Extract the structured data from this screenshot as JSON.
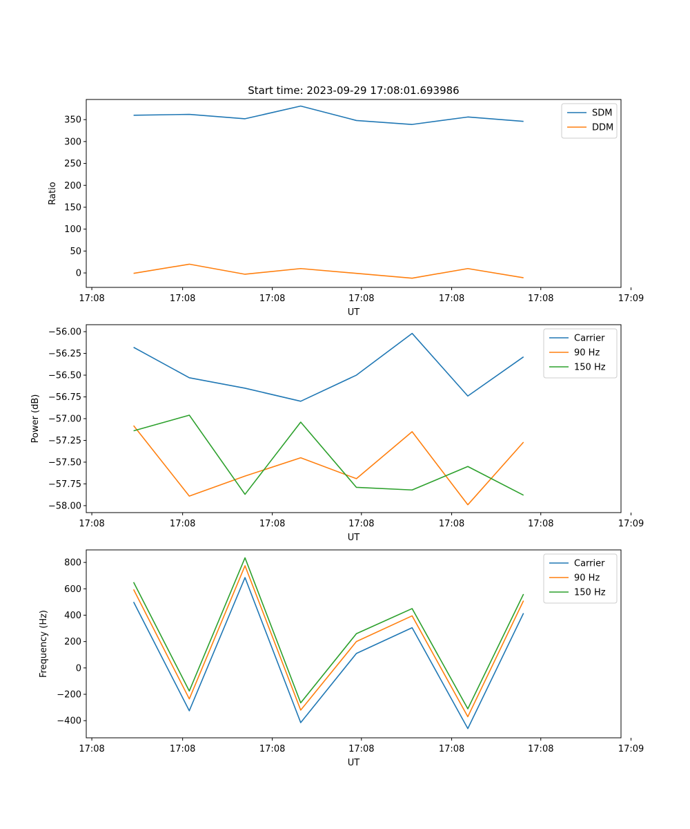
{
  "chart_data": [
    {
      "type": "line",
      "title": "Start time: 2023-09-29 17:08:01.693986",
      "xlabel": "UT",
      "ylabel": "Ratio",
      "ylim": [
        -33,
        396
      ],
      "yticks": [
        0,
        50,
        100,
        150,
        200,
        250,
        300,
        350
      ],
      "ytick_labels": [
        "0",
        "50",
        "100",
        "150",
        "200",
        "250",
        "300",
        "350"
      ],
      "xlim": [
        -0.85,
        8.75
      ],
      "xticks": [
        -0.75,
        0.88,
        2.49,
        4.09,
        5.71,
        7.31,
        8.93
      ],
      "xtick_labels": [
        "17:08",
        "17:08",
        "17:08",
        "17:08",
        "17:08",
        "17:08",
        "17:09"
      ],
      "x": [
        0,
        1,
        2,
        3,
        4,
        5,
        6,
        7
      ],
      "legend_loc": "upper right",
      "series": [
        {
          "name": "SDM",
          "color": "#1f77b4",
          "values": [
            360,
            362,
            352,
            381,
            348,
            339,
            356,
            346
          ]
        },
        {
          "name": "DDM",
          "color": "#ff7f0e",
          "values": [
            -1,
            20,
            -3,
            10,
            -1,
            -12,
            10,
            -11
          ]
        }
      ]
    },
    {
      "type": "line",
      "title": "",
      "xlabel": "UT",
      "ylabel": "Power (dB)",
      "ylim": [
        -58.08,
        -55.92
      ],
      "yticks": [
        -58.0,
        -57.75,
        -57.5,
        -57.25,
        -57.0,
        -56.75,
        -56.5,
        -56.25,
        -56.0
      ],
      "ytick_labels": [
        "−58.00",
        "−57.75",
        "−57.50",
        "−57.25",
        "−57.00",
        "−56.75",
        "−56.50",
        "−56.25",
        "−56.00"
      ],
      "xlim": [
        -0.85,
        8.75
      ],
      "xticks": [
        -0.75,
        0.88,
        2.49,
        4.09,
        5.71,
        7.31,
        8.93
      ],
      "xtick_labels": [
        "17:08",
        "17:08",
        "17:08",
        "17:08",
        "17:08",
        "17:08",
        "17:09"
      ],
      "x": [
        0,
        1,
        2,
        3,
        4,
        5,
        6,
        7
      ],
      "legend_loc": "upper right",
      "series": [
        {
          "name": "Carrier",
          "color": "#1f77b4",
          "values": [
            -56.18,
            -56.53,
            -56.65,
            -56.8,
            -56.5,
            -56.02,
            -56.74,
            -56.29
          ]
        },
        {
          "name": "90 Hz",
          "color": "#ff7f0e",
          "values": [
            -57.08,
            -57.89,
            -57.66,
            -57.45,
            -57.69,
            -57.15,
            -57.99,
            -57.27
          ]
        },
        {
          "name": "150 Hz",
          "color": "#2ca02c",
          "values": [
            -57.14,
            -56.96,
            -57.87,
            -57.04,
            -57.79,
            -57.82,
            -57.55,
            -57.88
          ]
        }
      ]
    },
    {
      "type": "line",
      "title": "",
      "xlabel": "UT",
      "ylabel": "Frequency (Hz)",
      "ylim": [
        -530,
        895
      ],
      "yticks": [
        -400,
        -200,
        0,
        200,
        400,
        600,
        800
      ],
      "ytick_labels": [
        "−400",
        "−200",
        "0",
        "200",
        "400",
        "600",
        "800"
      ],
      "xlim": [
        -0.85,
        8.75
      ],
      "xticks": [
        -0.75,
        0.88,
        2.49,
        4.09,
        5.71,
        7.31,
        8.93
      ],
      "xtick_labels": [
        "17:08",
        "17:08",
        "17:08",
        "17:08",
        "17:08",
        "17:08",
        "17:09"
      ],
      "x": [
        0,
        1,
        2,
        3,
        4,
        5,
        6,
        7
      ],
      "legend_loc": "upper right",
      "series": [
        {
          "name": "Carrier",
          "color": "#1f77b4",
          "values": [
            500,
            -325,
            685,
            -415,
            110,
            305,
            -460,
            415
          ]
        },
        {
          "name": "90 Hz",
          "color": "#ff7f0e",
          "values": [
            595,
            -235,
            775,
            -320,
            200,
            395,
            -370,
            510
          ]
        },
        {
          "name": "150 Hz",
          "color": "#2ca02c",
          "values": [
            650,
            -175,
            835,
            -265,
            260,
            450,
            -310,
            560
          ]
        }
      ]
    }
  ]
}
